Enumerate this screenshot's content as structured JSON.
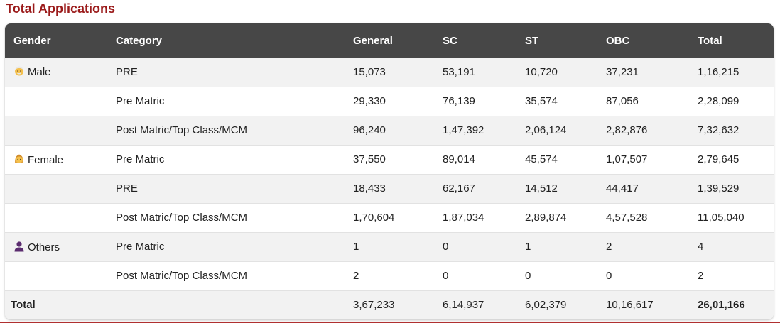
{
  "title": "Total Applications",
  "columns": [
    "Gender",
    "Category",
    "General",
    "SC",
    "ST",
    "OBC",
    "Total"
  ],
  "rows": [
    {
      "gender": "Male",
      "icon": "male-person-icon",
      "category": "PRE",
      "general": "15,073",
      "sc": "53,191",
      "st": "10,720",
      "obc": "37,231",
      "total": "1,16,215"
    },
    {
      "gender": "",
      "icon": "",
      "category": "Pre Matric",
      "general": "29,330",
      "sc": "76,139",
      "st": "35,574",
      "obc": "87,056",
      "total": "2,28,099"
    },
    {
      "gender": "",
      "icon": "",
      "category": "Post Matric/Top Class/MCM",
      "general": "96,240",
      "sc": "1,47,392",
      "st": "2,06,124",
      "obc": "2,82,876",
      "total": "7,32,632"
    },
    {
      "gender": "Female",
      "icon": "female-person-icon",
      "category": "Pre Matric",
      "general": "37,550",
      "sc": "89,014",
      "st": "45,574",
      "obc": "1,07,507",
      "total": "2,79,645"
    },
    {
      "gender": "",
      "icon": "",
      "category": "PRE",
      "general": "18,433",
      "sc": "62,167",
      "st": "14,512",
      "obc": "44,417",
      "total": "1,39,529"
    },
    {
      "gender": "",
      "icon": "",
      "category": "Post Matric/Top Class/MCM",
      "general": "1,70,604",
      "sc": "1,87,034",
      "st": "2,89,874",
      "obc": "4,57,528",
      "total": "11,05,040"
    },
    {
      "gender": "Others",
      "icon": "other-person-icon",
      "category": "Pre Matric",
      "general": "1",
      "sc": "0",
      "st": "1",
      "obc": "2",
      "total": "4"
    },
    {
      "gender": "",
      "icon": "",
      "category": "Post Matric/Top Class/MCM",
      "general": "2",
      "sc": "0",
      "st": "0",
      "obc": "0",
      "total": "2"
    }
  ],
  "totals": {
    "label": "Total",
    "general": "3,67,233",
    "sc": "6,14,937",
    "st": "6,02,379",
    "obc": "10,16,617",
    "total": "26,01,166"
  },
  "colors": {
    "title": "#9b1b1b",
    "header_bg": "#474747",
    "stripe": "#f2f2f2",
    "accent_line": "#b03030"
  }
}
